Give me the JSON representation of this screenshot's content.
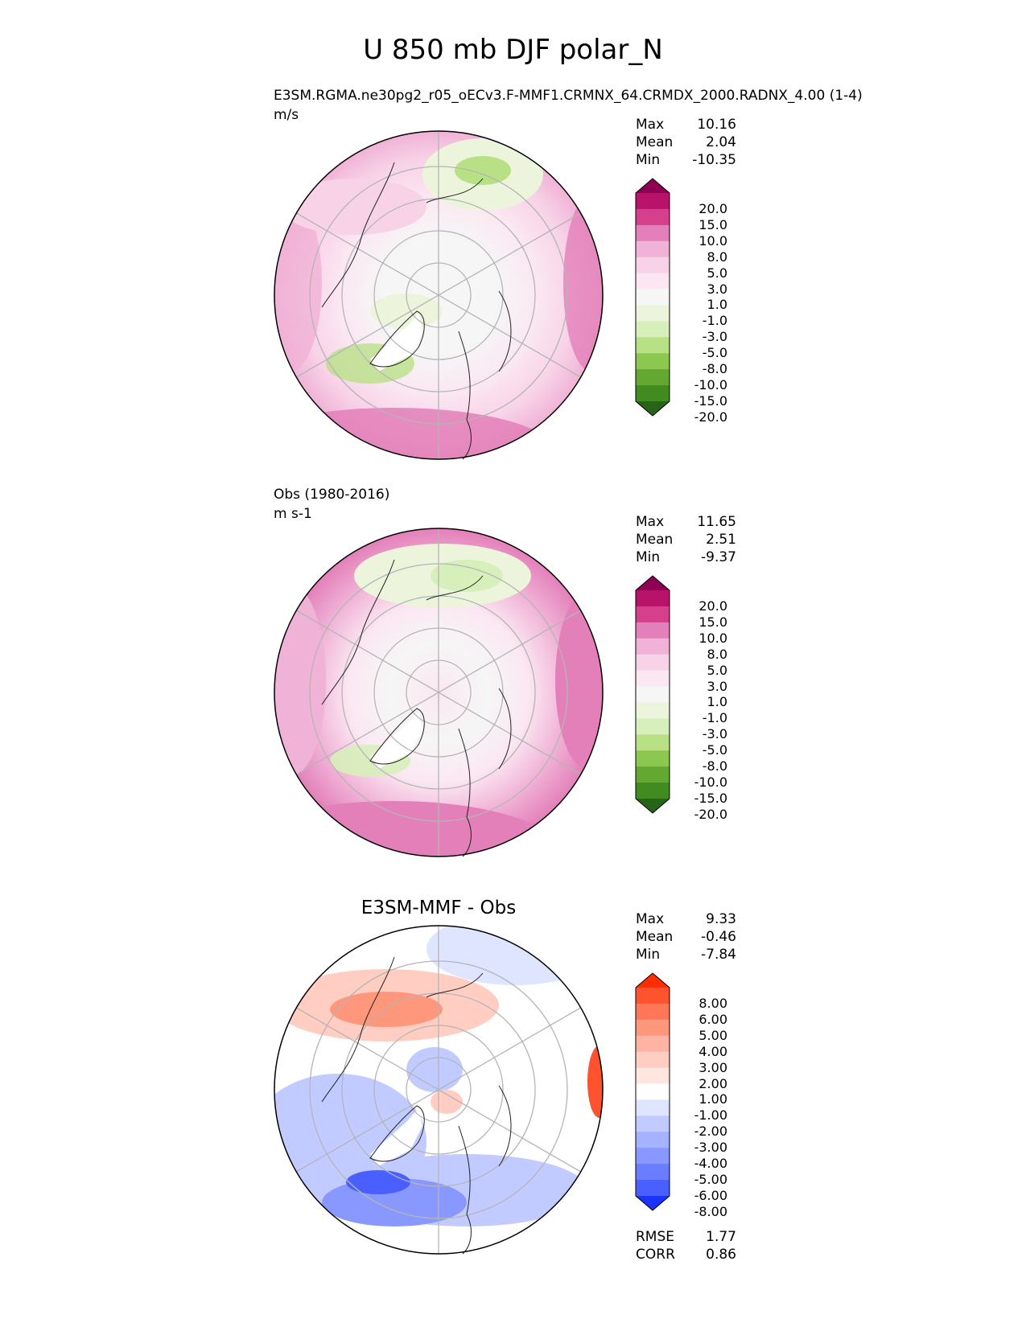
{
  "page_title": "U 850 mb DJF polar_N",
  "panels": [
    {
      "title": "E3SM.RGMA.ne30pg2_r05_oECv3.F-MMF1.CRMNX_64.CRMDX_2000.RADNX_4.00 (1-4)",
      "units": "m/s",
      "stats": {
        "max_label": "Max",
        "max": "10.16",
        "mean_label": "Mean",
        "mean": "2.04",
        "min_label": "Min",
        "min": "-10.35"
      }
    },
    {
      "title": "Obs (1980-2016)",
      "units": "m s-1",
      "stats": {
        "max_label": "Max",
        "max": "11.65",
        "mean_label": "Mean",
        "mean": "2.51",
        "min_label": "Min",
        "min": "-9.37"
      }
    },
    {
      "title": "E3SM-MMF - Obs",
      "stats": {
        "max_label": "Max",
        "max": "9.33",
        "mean_label": "Mean",
        "mean": "-0.46",
        "min_label": "Min",
        "min": "-7.84"
      },
      "metrics": {
        "rmse_label": "RMSE",
        "rmse": "1.77",
        "corr_label": "CORR",
        "corr": "0.86"
      }
    }
  ],
  "colorbars": {
    "field": {
      "ticks": [
        "20.0",
        "15.0",
        "10.0",
        "8.0",
        "5.0",
        "3.0",
        "1.0",
        "-1.0",
        "-3.0",
        "-5.0",
        "-8.0",
        "-10.0",
        "-15.0",
        "-20.0"
      ],
      "colors": [
        "#8e0152",
        "#b9126b",
        "#d53f8c",
        "#e37fb9",
        "#f0b2d6",
        "#f8d3e8",
        "#fbe7f2",
        "#f6f6f6",
        "#ecf5dc",
        "#d7efba",
        "#b8e186",
        "#8cc750",
        "#64a832",
        "#428b21",
        "#276419"
      ]
    },
    "diff": {
      "ticks": [
        "8.00",
        "6.00",
        "5.00",
        "4.00",
        "3.00",
        "2.00",
        "1.00",
        "-1.00",
        "-2.00",
        "-3.00",
        "-4.00",
        "-5.00",
        "-6.00",
        "-8.00"
      ],
      "colors": [
        "#ff2d00",
        "#ff5330",
        "#ff7756",
        "#ff977c",
        "#ffb3a2",
        "#ffcdc1",
        "#ffe6df",
        "#ffffff",
        "#dfe4ff",
        "#c2cbff",
        "#a5b2ff",
        "#8898ff",
        "#6a7dff",
        "#4a5fff",
        "#1a33ff"
      ]
    }
  },
  "chart_data": [
    {
      "type": "heatmap",
      "projection": "north polar stereographic",
      "title": "E3SM.RGMA.ne30pg2_r05_oECv3.F-MMF1.CRMNX_64.CRMDX_2000.RADNX_4.00 (1-4)",
      "variable": "U 850 mb DJF",
      "units": "m/s",
      "colorbar_levels": [
        -20,
        -15,
        -10,
        -8,
        -5,
        -3,
        -1,
        1,
        3,
        5,
        8,
        10,
        15,
        20
      ],
      "max": 10.16,
      "mean": 2.04,
      "min": -10.35
    },
    {
      "type": "heatmap",
      "projection": "north polar stereographic",
      "title": "Obs (1980-2016)",
      "variable": "U 850 mb DJF",
      "units": "m s-1",
      "colorbar_levels": [
        -20,
        -15,
        -10,
        -8,
        -5,
        -3,
        -1,
        1,
        3,
        5,
        8,
        10,
        15,
        20
      ],
      "max": 11.65,
      "mean": 2.51,
      "min": -9.37
    },
    {
      "type": "heatmap",
      "projection": "north polar stereographic",
      "title": "E3SM-MMF - Obs",
      "variable": "U 850 mb DJF difference",
      "colorbar_levels": [
        -8,
        -6,
        -5,
        -4,
        -3,
        -2,
        -1,
        1,
        2,
        3,
        4,
        5,
        6,
        8
      ],
      "max": 9.33,
      "mean": -0.46,
      "min": -7.84,
      "rmse": 1.77,
      "corr": 0.86
    }
  ]
}
